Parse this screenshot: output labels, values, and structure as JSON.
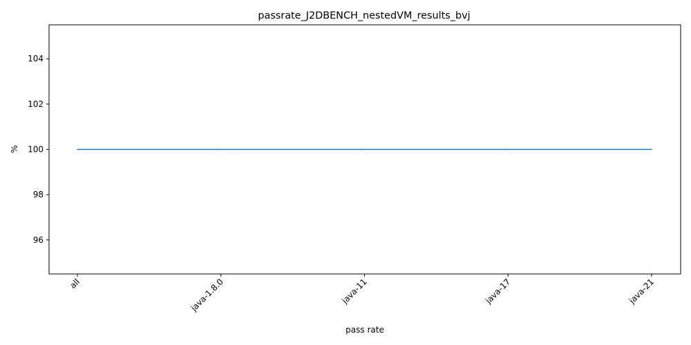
{
  "chart_data": {
    "type": "line",
    "title": "passrate_J2DBENCH_nestedVM_results_bvj",
    "xlabel": "pass rate",
    "ylabel": "%",
    "categories": [
      "all",
      "java-1.8.0",
      "java-11",
      "java-17",
      "java-21"
    ],
    "series": [
      {
        "values": [
          100,
          100,
          100,
          100,
          100
        ],
        "color": "#1f77b4"
      }
    ],
    "ylim": [
      94.5,
      105.5
    ],
    "yticks": [
      96,
      98,
      100,
      102,
      104
    ],
    "grid": false,
    "legend": "none"
  }
}
